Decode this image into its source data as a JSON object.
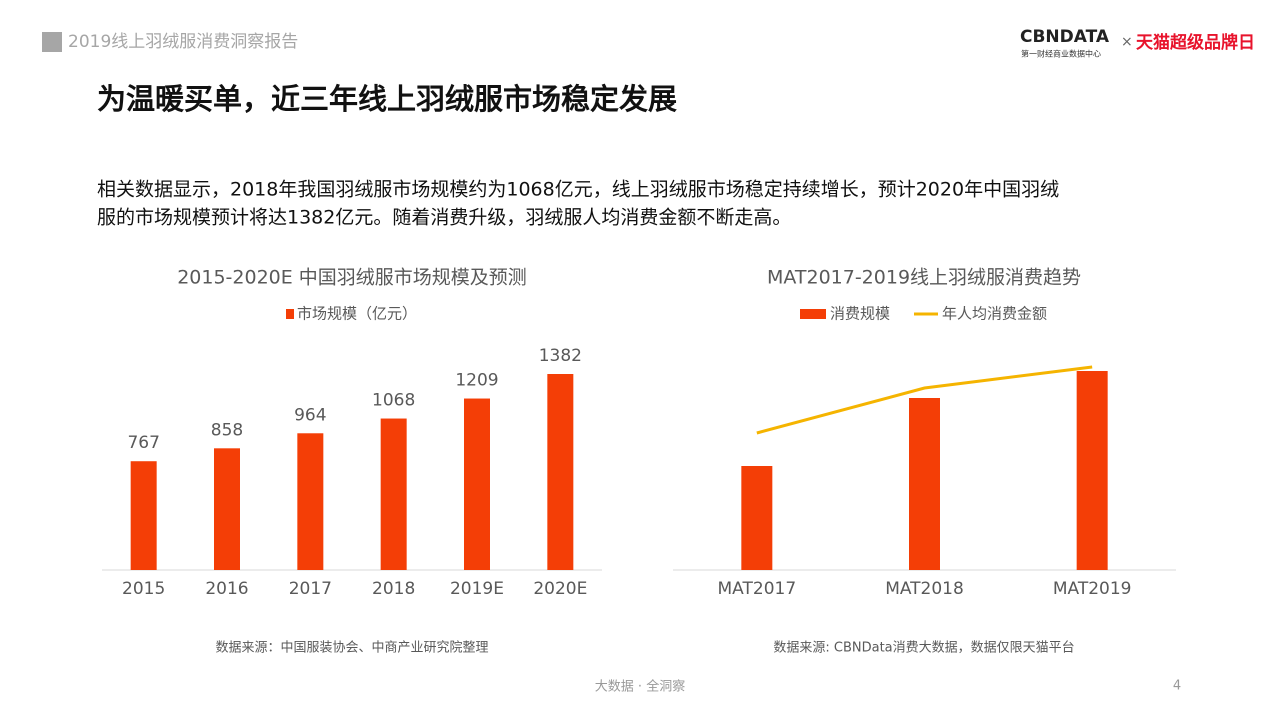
{
  "header": {
    "report": "2019线上羽绒服消费洞察报告",
    "brand": "CBNDATA",
    "brand_sub": "第一财经商业数据中心",
    "times": "×",
    "partner": "天猫超级品牌日"
  },
  "title": "为温暖买单，近三年线上羽绒服市场稳定发展",
  "paragraph": [
    "相关数据显示，2018年我国羽绒服市场规模约为1068亿元，线上羽绒服市场稳定持续增长，预计2020年中国羽绒",
    "服的市场规模预计将达1382亿元。随着消费升级，羽绒服人均消费金额不断走高。"
  ],
  "chart_data": [
    {
      "type": "bar",
      "title": "2015-2020E 中国羽绒服市场规模及预测",
      "categories": [
        "2015",
        "2016",
        "2017",
        "2018",
        "2019E",
        "2020E"
      ],
      "series": [
        {
          "name": "市场规模（亿元）",
          "color": "#f43e06",
          "values": [
            767,
            858,
            964,
            1068,
            1209,
            1382
          ]
        }
      ],
      "data_labels": true,
      "source": "数据来源：中国服装协会、中商产业研究院整理"
    },
    {
      "type": "combo",
      "title": "MAT2017-2019线上羽绒服消费趋势",
      "categories": [
        "MAT2017",
        "MAT2018",
        "MAT2019"
      ],
      "series": [
        {
          "name": "消费规模",
          "type": "bar",
          "color": "#f43e06",
          "values": [
            104,
            172,
            199
          ]
        },
        {
          "name": "年人均消费金额",
          "type": "line",
          "color": "#f5b400",
          "values": [
            137,
            182,
            203
          ]
        }
      ],
      "data_labels": false,
      "source": "数据来源: CBNData消费大数据，数据仅限天猫平台"
    }
  ],
  "footer": {
    "slogan": "大数据 · 全洞察",
    "page": "4"
  }
}
